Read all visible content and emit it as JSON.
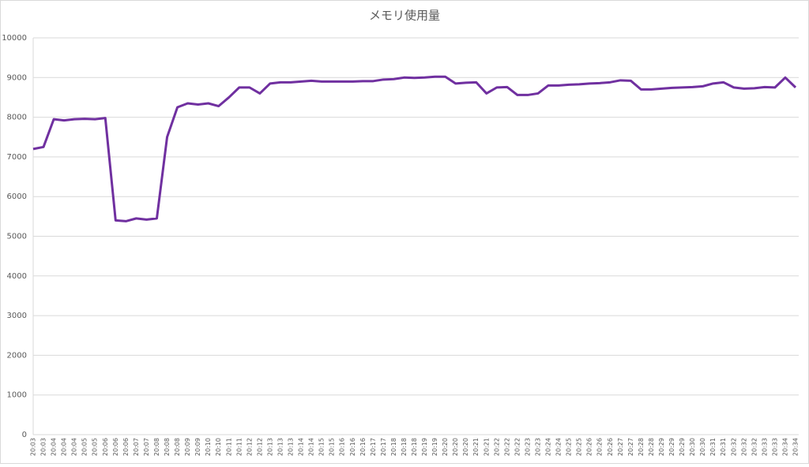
{
  "chart_data": {
    "type": "line",
    "title": "メモリ使用量",
    "categories": [
      "20:03",
      "20:03",
      "20:04",
      "20:04",
      "20:04",
      "20:05",
      "20:05",
      "20:06",
      "20:06",
      "20:06",
      "20:07",
      "20:07",
      "20:08",
      "20:08",
      "20:08",
      "20:09",
      "20:09",
      "20:10",
      "20:10",
      "20:11",
      "20:11",
      "20:12",
      "20:12",
      "20:13",
      "20:13",
      "20:13",
      "20:14",
      "20:14",
      "20:15",
      "20:15",
      "20:16",
      "20:16",
      "20:16",
      "20:17",
      "20:17",
      "20:18",
      "20:18",
      "20:18",
      "20:19",
      "20:19",
      "20:20",
      "20:20",
      "20:20",
      "20:21",
      "20:21",
      "20:22",
      "20:22",
      "20:22",
      "20:23",
      "20:23",
      "20:24",
      "20:24",
      "20:25",
      "20:25",
      "20:26",
      "20:26",
      "20:26",
      "20:27",
      "20:27",
      "20:28",
      "20:28",
      "20:29",
      "20:29",
      "20:29",
      "20:30",
      "20:30",
      "20:31",
      "20:31",
      "20:32",
      "20:32",
      "20:32",
      "20:33",
      "20:33",
      "20:34",
      "20:34"
    ],
    "values": [
      7200,
      7250,
      7950,
      7920,
      7950,
      7960,
      7950,
      7980,
      5400,
      5380,
      5450,
      5420,
      5450,
      7500,
      8250,
      8350,
      8320,
      8350,
      8280,
      8500,
      8750,
      8750,
      8600,
      8850,
      8880,
      8880,
      8900,
      8920,
      8900,
      8900,
      8900,
      8900,
      8910,
      8910,
      8950,
      8960,
      9000,
      8990,
      9000,
      9020,
      9020,
      8850,
      8870,
      8880,
      8600,
      8750,
      8760,
      8560,
      8560,
      8600,
      8800,
      8800,
      8820,
      8830,
      8850,
      8860,
      8880,
      8930,
      8920,
      8700,
      8700,
      8720,
      8740,
      8750,
      8760,
      8780,
      8850,
      8880,
      8750,
      8720,
      8730,
      8760,
      8750,
      9000,
      8750
    ],
    "color": "#7030a0",
    "ylim": [
      0,
      10000
    ],
    "yticks": [
      0,
      1000,
      2000,
      3000,
      4000,
      5000,
      6000,
      7000,
      8000,
      9000,
      10000
    ],
    "grid": true
  }
}
